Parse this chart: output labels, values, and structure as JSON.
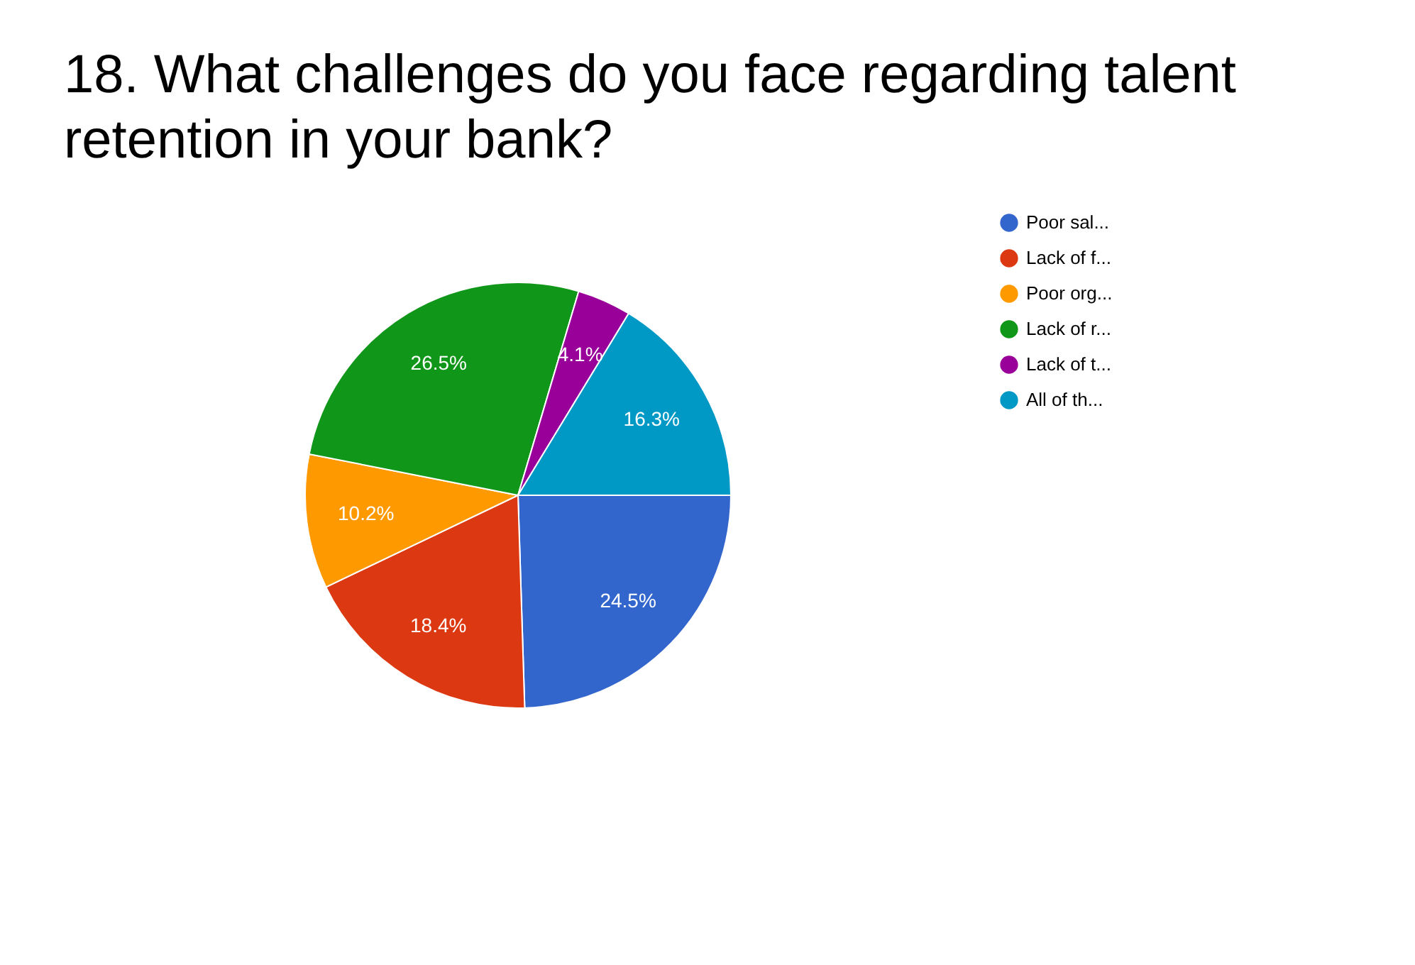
{
  "chart_data": {
    "type": "pie",
    "title": "18. What challenges do you face regarding talent retention in your bank?",
    "categories": [
      "Poor sal...",
      "Lack of f...",
      "Poor org...",
      "Lack of r...",
      "Lack of t...",
      "All of th..."
    ],
    "values": [
      24.5,
      18.4,
      10.2,
      26.5,
      4.1,
      16.3
    ],
    "value_labels": [
      "24.5%",
      "18.4%",
      "10.2%",
      "26.5%",
      "4.1%",
      "16.3%"
    ],
    "colors": [
      "#3366cc",
      "#dc3912",
      "#ff9900",
      "#109618",
      "#990099",
      "#0099c6"
    ],
    "legend": "top right"
  }
}
